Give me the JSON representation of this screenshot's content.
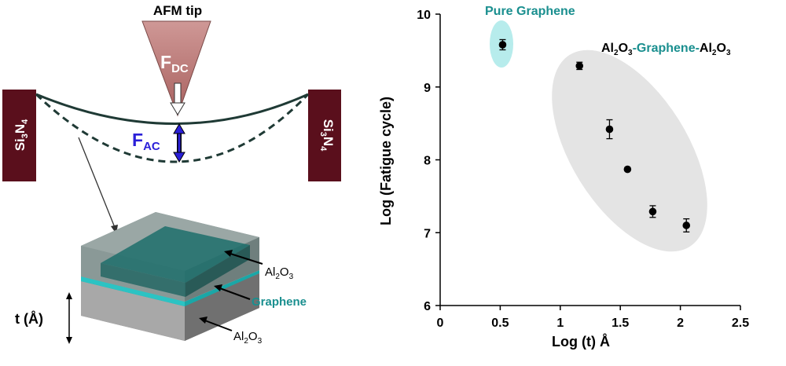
{
  "schematic": {
    "tip_label": "AFM tip",
    "force_dc_main": "F",
    "force_dc_sub": "DC",
    "force_ac_main": "F",
    "force_ac_sub": "AC",
    "support_left": {
      "a": "Si",
      "a_sub": "3",
      "b": "N",
      "b_sub": "4"
    },
    "support_right": {
      "a": "Si",
      "a_sub": "3",
      "b": "N",
      "b_sub": "4"
    },
    "stack": {
      "top_label": {
        "a": "Al",
        "a_sub": "2",
        "b": "O",
        "b_sub": "3"
      },
      "middle_label": "Graphene",
      "bottom_label": {
        "a": "Al",
        "a_sub": "2",
        "b": "O",
        "b_sub": "3"
      },
      "thickness_label": "t (Å)"
    },
    "colors": {
      "tip": "#c28a88",
      "support": "#5a0f1c",
      "graphene": "#1aa7a7",
      "force_ac": "#2a1fd8",
      "block": "#8f8f8f"
    }
  },
  "chart_data": {
    "type": "scatter",
    "title": "",
    "xlabel": "Log (t) Å",
    "ylabel": "Log (Fatigue cycle)",
    "xlim": [
      0,
      2.5
    ],
    "ylim": [
      6,
      10
    ],
    "xticks": [
      0,
      0.5,
      1,
      1.5,
      2,
      2.5
    ],
    "xtick_labels": [
      "0",
      "0.5",
      "1",
      "1.5",
      "2",
      "2.5"
    ],
    "yticks": [
      6,
      7,
      8,
      9,
      10
    ],
    "ytick_labels": [
      "6",
      "7",
      "8",
      "9",
      "10"
    ],
    "series": [
      {
        "name": "Pure Graphene",
        "color": "#1a8f8f",
        "x": [
          0.52
        ],
        "y": [
          9.58
        ],
        "err": [
          0.07
        ]
      },
      {
        "name": "Al2O3-Graphene-Al2O3",
        "color": "#000000",
        "x": [
          1.16,
          1.41,
          1.56,
          1.77,
          2.05
        ],
        "y": [
          9.29,
          8.42,
          7.87,
          7.29,
          7.1
        ],
        "err": [
          0.05,
          0.13,
          0.0,
          0.08,
          0.09
        ]
      }
    ],
    "annotations": {
      "pure_label": "Pure Graphene",
      "stack_label": {
        "a": "Al",
        "a_sub": "2",
        "b": "O",
        "b_sub": "3",
        "mid": "-Graphene-",
        "c": "Al",
        "c_sub": "2",
        "d": "O",
        "d_sub": "3"
      }
    }
  }
}
